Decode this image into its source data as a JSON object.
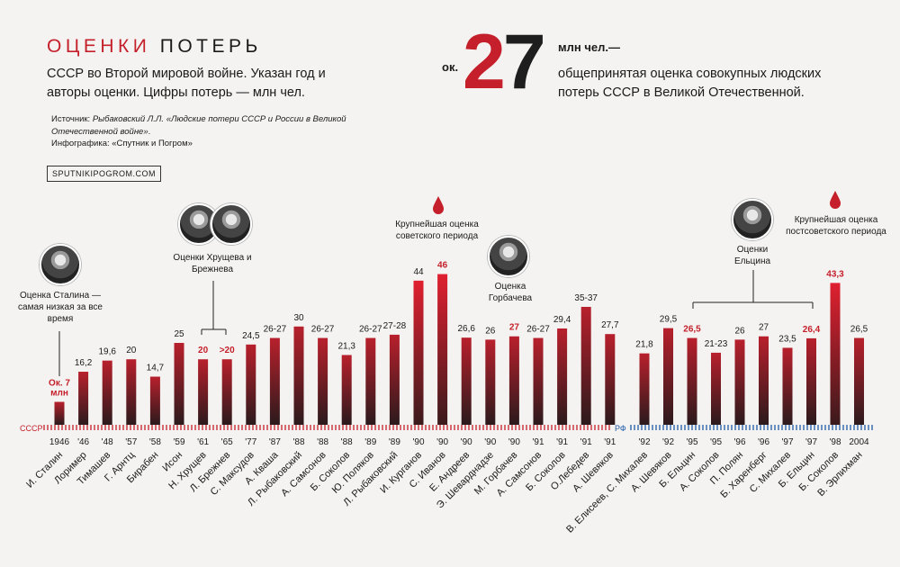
{
  "header": {
    "title_red": "ОЦЕНКИ",
    "title_dark": "ПОТЕРЬ",
    "subtitle": "СССР во Второй мировой войне. Указан год и авторы оценки. Цифры потерь — млн чел.",
    "source_prefix": "Источник: ",
    "source_italic": "Рыбаковский Л.Л. «Людские потери СССР и России в Великой Отечественной войне»",
    "source_suffix": ".",
    "infographic": "Инфографика: «Спутник и Погром»",
    "site": "SPUTNIKIPOGROM.COM"
  },
  "headline": {
    "prefix": "ок.",
    "digit1": "2",
    "digit2": "7",
    "unit": "млн чел.—",
    "description": "общепринятая оценка совокупных людских потерь СССР в Великой Отечественной."
  },
  "annotations": {
    "stalin": "Оценка Сталина — самая низкая за все время",
    "khrushchev_brezhnev": "Оценки Хрущева и Брежнева",
    "soviet_max": "Крупнейшая оценка советского периода",
    "gorbachev": "Оценка Горбачева",
    "yeltsin": "Оценки Ельцина",
    "post_soviet_max": "Крупнейшая оценка постсоветского периода"
  },
  "colors": {
    "red": "#c41f2a",
    "dark": "#2a2a2a",
    "ussr_axis": "#c41f2a",
    "rf_axis": "#1f5aa6"
  },
  "chart_data": {
    "type": "bar",
    "title": "ОЦЕНКИ ПОТЕРЬ",
    "ylabel": "млн чел.",
    "ylim": [
      0,
      50
    ],
    "axis_labels": {
      "ussr": "СССР",
      "rf": "РФ"
    },
    "ussr": [
      {
        "year": "1946",
        "author": "И. Сталин",
        "label": "Ок. 7 млн",
        "value": 7,
        "highlight": true
      },
      {
        "year": "'46",
        "author": "Лоример",
        "label": "16,2",
        "value": 16.2
      },
      {
        "year": "'48",
        "author": "Тимашев",
        "label": "19,6",
        "value": 19.6
      },
      {
        "year": "'57",
        "author": "Г. Арнтц",
        "label": "20",
        "value": 20
      },
      {
        "year": "'58",
        "author": "Бирабен",
        "label": "14,7",
        "value": 14.7
      },
      {
        "year": "'59",
        "author": "Исон",
        "label": "25",
        "value": 25
      },
      {
        "year": "'61",
        "author": "Н. Хрущев",
        "label": "20",
        "value": 20,
        "highlight": true
      },
      {
        "year": "'65",
        "author": "Л. Брежнев",
        "label": ">20",
        "value": 20,
        "highlight": true
      },
      {
        "year": "'77",
        "author": "С. Максудов",
        "label": "24,5",
        "value": 24.5
      },
      {
        "year": "'87",
        "author": "А. Кваша",
        "label": "26-27",
        "value": 26.5
      },
      {
        "year": "'88",
        "author": "Л. Рыбаковский",
        "label": "30",
        "value": 30
      },
      {
        "year": "'88",
        "author": "А. Самсонов",
        "label": "26-27",
        "value": 26.5
      },
      {
        "year": "'88",
        "author": "Б. Соколов",
        "label": "21,3",
        "value": 21.3
      },
      {
        "year": "'89",
        "author": "Ю. Поляков",
        "label": "26-27",
        "value": 26.5
      },
      {
        "year": "'89",
        "author": "Л. Рыбаковский",
        "label": "27-28",
        "value": 27.5
      },
      {
        "year": "'90",
        "author": "И. Курганов",
        "label": "44",
        "value": 44
      },
      {
        "year": "'90",
        "author": "С. Иванов",
        "label": "46",
        "value": 46,
        "highlight": true
      },
      {
        "year": "'90",
        "author": "Е. Андреев",
        "label": "26,6",
        "value": 26.6
      },
      {
        "year": "'90",
        "author": "Э. Шеварднадзе",
        "label": "26",
        "value": 26
      },
      {
        "year": "'90",
        "author": "М. Горбачев",
        "label": "27",
        "value": 27,
        "highlight": true
      },
      {
        "year": "'91",
        "author": "А. Самсонов",
        "label": "26-27",
        "value": 26.5
      },
      {
        "year": "'91",
        "author": "Б. Соколов",
        "label": "29,4",
        "value": 29.4
      },
      {
        "year": "'91",
        "author": "О.Лебедев",
        "label": "35-37",
        "value": 36
      },
      {
        "year": "'91",
        "author": "А. Шевяков",
        "label": "27,7",
        "value": 27.7
      }
    ],
    "rf": [
      {
        "year": "'92",
        "author": "В. Елисеев, С. Михалев",
        "label": "21,8",
        "value": 21.8
      },
      {
        "year": "'92",
        "author": "А. Шевяков",
        "label": "29,5",
        "value": 29.5
      },
      {
        "year": "'95",
        "author": "Б. Ельцин",
        "label": "26,5",
        "value": 26.5,
        "highlight": true
      },
      {
        "year": "'95",
        "author": "А. Соколов",
        "label": "21-23",
        "value": 22
      },
      {
        "year": "'96",
        "author": "П. Полян",
        "label": "26",
        "value": 26
      },
      {
        "year": "'96",
        "author": "Б. Харенберг",
        "label": "27",
        "value": 27
      },
      {
        "year": "'97",
        "author": "С. Михалев",
        "label": "23,5",
        "value": 23.5
      },
      {
        "year": "'97",
        "author": "Б. Ельцин",
        "label": "26,4",
        "value": 26.4,
        "highlight": true
      },
      {
        "year": "'98",
        "author": "Б. Соколов",
        "label": "43,3",
        "value": 43.3,
        "highlight": true
      },
      {
        "year": "2004",
        "author": "В. Эрлихман",
        "label": "26,5",
        "value": 26.5
      }
    ]
  }
}
